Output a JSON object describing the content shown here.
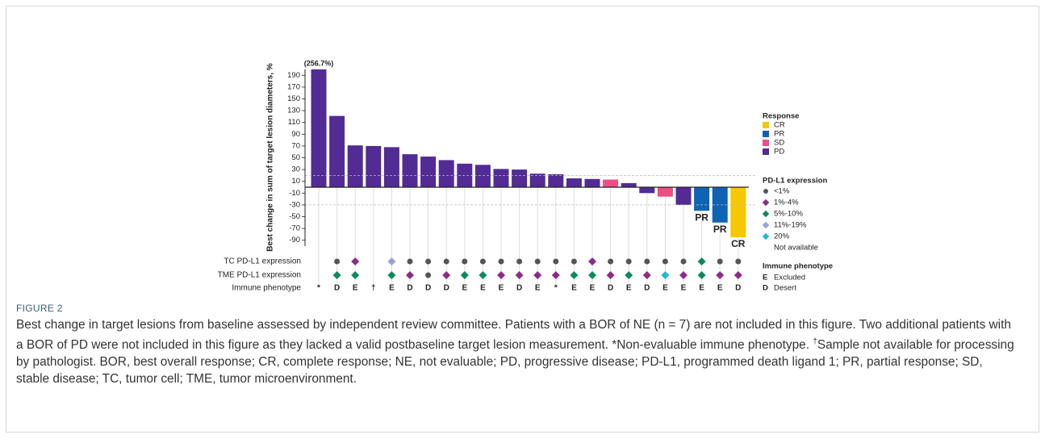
{
  "chart_data": {
    "type": "bar",
    "ylabel": "Best change in sum of target lesion diameters, %",
    "values": [
      256.7,
      121,
      71,
      70,
      68,
      56,
      52,
      46,
      40,
      38,
      31,
      30,
      23,
      22,
      15,
      14,
      13,
      7,
      -10,
      -16,
      -30,
      -40,
      -60,
      -85
    ],
    "value_labels": [
      "(256.7%)",
      null,
      null,
      null,
      null,
      null,
      null,
      null,
      null,
      null,
      null,
      null,
      null,
      null,
      null,
      null,
      null,
      null,
      null,
      null,
      null,
      null,
      null,
      null
    ],
    "response": [
      "PD",
      "PD",
      "PD",
      "PD",
      "PD",
      "PD",
      "PD",
      "PD",
      "PD",
      "PD",
      "PD",
      "PD",
      "PD",
      "PD",
      "PD",
      "PD",
      "SD",
      "PD",
      "PD",
      "SD",
      "PD",
      "PR",
      "PR",
      "CR"
    ],
    "bar_labels": [
      null,
      null,
      null,
      null,
      null,
      null,
      null,
      null,
      null,
      null,
      null,
      null,
      null,
      null,
      null,
      null,
      null,
      null,
      null,
      null,
      null,
      "PR",
      "PR",
      "CR"
    ],
    "ylim": [
      -100,
      200
    ],
    "yticks": [
      190,
      170,
      150,
      130,
      110,
      90,
      70,
      50,
      30,
      10,
      -10,
      -30,
      -50,
      -70,
      -90
    ],
    "reference_lines": [
      20,
      -30
    ],
    "rows": [
      {
        "label": "TC PD-L1 expression",
        "values": [
          null,
          "<1%",
          "1%-4%",
          null,
          "11%-19%",
          "<1%",
          "<1%",
          "<1%",
          "<1%",
          "<1%",
          "<1%",
          "<1%",
          "<1%",
          "<1%",
          "<1%",
          "1%-4%",
          "<1%",
          "<1%",
          "<1%",
          "<1%",
          "<1%",
          "5%-10%",
          "<1%",
          "<1%"
        ]
      },
      {
        "label": "TME PD-L1 expression",
        "values": [
          null,
          "5%-10%",
          "5%-10%",
          null,
          "5%-10%",
          "1%-4%",
          "<1%",
          "1%-4%",
          "5%-10%",
          "5%-10%",
          "1%-4%",
          "1%-4%",
          "1%-4%",
          "1%-4%",
          "5%-10%",
          "5%-10%",
          "1%-4%",
          "5%-10%",
          "1%-4%",
          "20%",
          "1%-4%",
          "5%-10%",
          "1%-4%",
          "1%-4%"
        ]
      },
      {
        "label": "Immune phenotype",
        "values": [
          "*",
          "D",
          "E",
          "†",
          "E",
          "D",
          "D",
          "D",
          "E",
          "E",
          "E",
          "D",
          "E",
          "*",
          "E",
          "E",
          "D",
          "E",
          "D",
          "E",
          "E",
          "E",
          "E",
          "D"
        ]
      }
    ],
    "response_legend": {
      "title": "Response",
      "items": [
        {
          "name": "CR",
          "color": "#f5c800"
        },
        {
          "name": "PR",
          "color": "#0e63b4"
        },
        {
          "name": "SD",
          "color": "#ee4d86"
        },
        {
          "name": "PD",
          "color": "#522b95"
        }
      ]
    },
    "pdl1_legend": {
      "title": "PD-L1 expression",
      "items": [
        {
          "name": "<1%",
          "color": "#555555",
          "shape": "circle"
        },
        {
          "name": "1%-4%",
          "color": "#8d2b8b",
          "shape": "diamond"
        },
        {
          "name": "5%-10%",
          "color": "#0e8a5c",
          "shape": "diamond"
        },
        {
          "name": "11%-19%",
          "color": "#9ba0d8",
          "shape": "diamond"
        },
        {
          "name": "20%",
          "color": "#22b8d0",
          "shape": "diamond"
        },
        {
          "name": "Not available",
          "color": null,
          "shape": null
        }
      ]
    },
    "phenotype_legend": {
      "title": "Immune phenotype",
      "items": [
        {
          "code": "E",
          "label": "Excluded"
        },
        {
          "code": "D",
          "label": "Desert"
        }
      ]
    }
  },
  "caption": {
    "label": "FIGURE 2",
    "parts": [
      "Best change in target lesions from baseline assessed by independent review committee. Patients with a BOR of NE (n = 7) are not included in this figure. Two additional patients with a BOR of PD were not included in this figure as they lacked a valid postbaseline target lesion measurement. *Non-evaluable immune phenotype. ",
      "†",
      "Sample not available for processing by pathologist. BOR, best overall response; CR, complete response; NE, not evaluable; PD, progressive disease; PD-L1, programmed death ligand 1; PR, partial response; SD, stable disease; TC, tumor cell; TME, tumor microenvironment."
    ]
  }
}
